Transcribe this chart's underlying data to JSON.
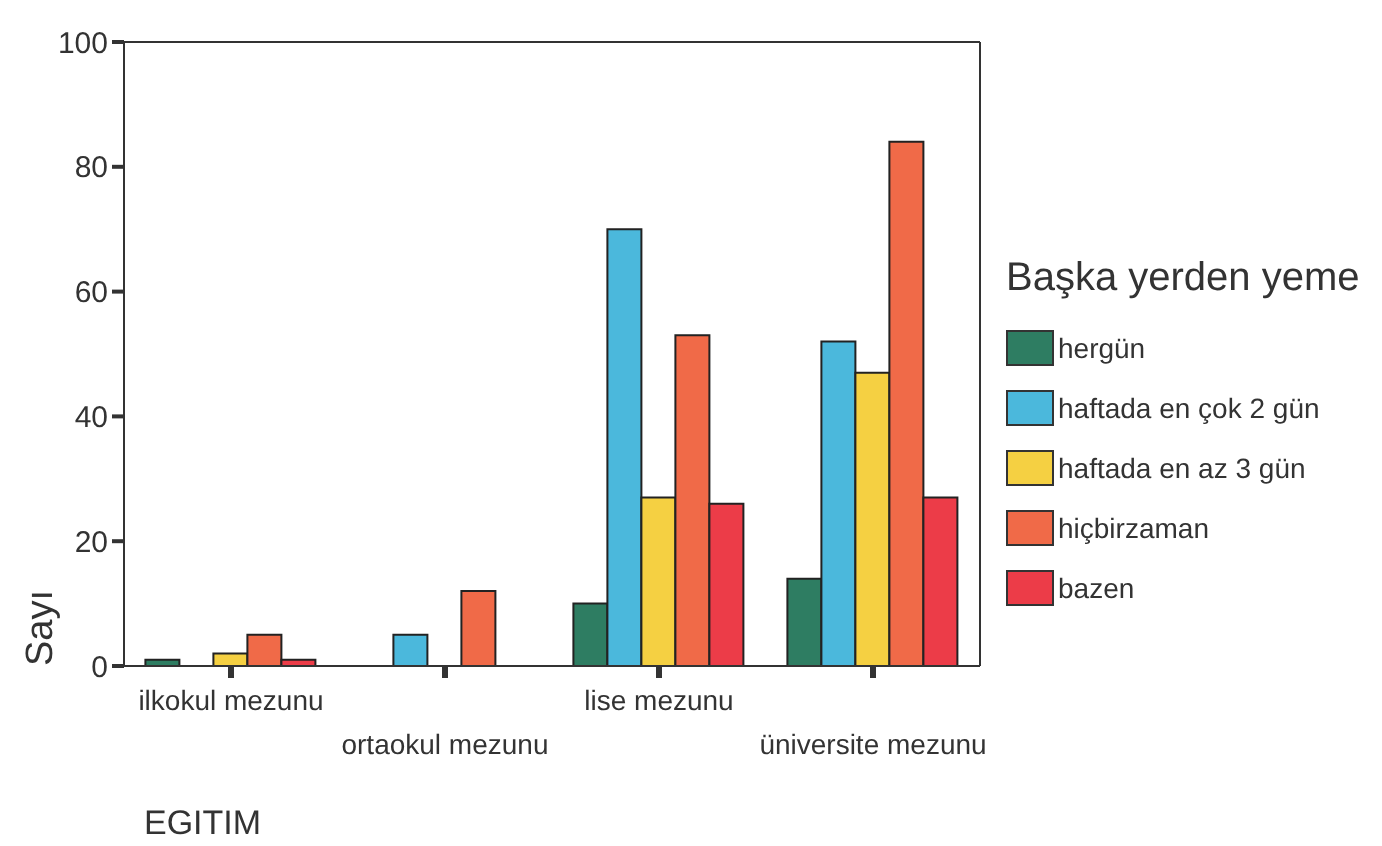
{
  "chart_data": {
    "type": "bar",
    "xlabel": "EGITIM",
    "ylabel": "Sayı",
    "legend_title": "Başka yerden yeme",
    "legend": "right",
    "categories": [
      "ilkokul mezunu",
      "ortaokul mezunu",
      "lise mezunu",
      "üniversite mezunu"
    ],
    "ylim": [
      0,
      100
    ],
    "yticks": [
      0,
      20,
      40,
      60,
      80,
      100
    ],
    "series": [
      {
        "name": "hergün",
        "color": "#2e7d62",
        "values": [
          1,
          0,
          10,
          14
        ]
      },
      {
        "name": "haftada en çok 2 gün",
        "color": "#4bb8dc",
        "values": [
          0,
          5,
          70,
          52
        ]
      },
      {
        "name": "haftada en az 3 gün",
        "color": "#f5d042",
        "values": [
          2,
          0,
          27,
          47
        ]
      },
      {
        "name": "hiçbirzaman",
        "color": "#f06a48",
        "values": [
          5,
          12,
          53,
          84
        ]
      },
      {
        "name": "bazen",
        "color": "#ec3c48",
        "values": [
          1,
          0,
          26,
          27
        ]
      }
    ]
  }
}
